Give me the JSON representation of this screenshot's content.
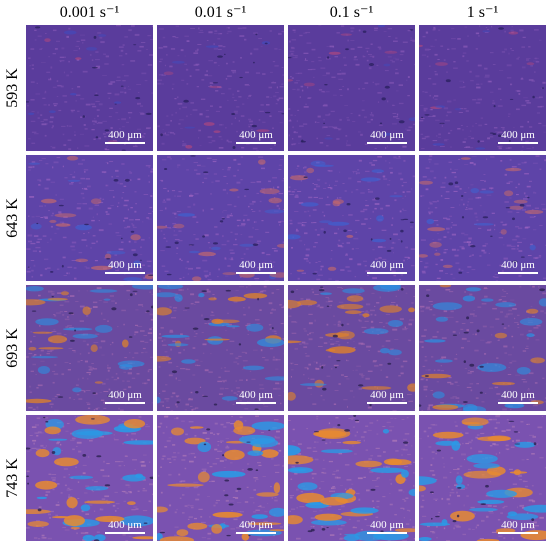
{
  "columns": [
    {
      "label": "0.001 s⁻¹"
    },
    {
      "label": "0.01 s⁻¹"
    },
    {
      "label": "0.1 s⁻¹"
    },
    {
      "label": "1 s⁻¹"
    }
  ],
  "rows": [
    {
      "label": "593 K",
      "base_color": "#5a3c9c",
      "accent_color": "#8a5ab8",
      "spot_colors": [
        "#c44a78",
        "#3a50c8",
        "#2a2060"
      ]
    },
    {
      "label": "643 K",
      "base_color": "#5e44a8",
      "accent_color": "#9a62c0",
      "spot_colors": [
        "#c86a6a",
        "#3c64d4",
        "#2a2260"
      ]
    },
    {
      "label": "693 K",
      "base_color": "#6a4aa0",
      "accent_color": "#a66ab0",
      "spot_colors": [
        "#e0822a",
        "#2e8ee0",
        "#2a2050"
      ]
    },
    {
      "label": "743 K",
      "base_color": "#7a52b0",
      "accent_color": "#b07ab8",
      "spot_colors": [
        "#e88a30",
        "#2a9ae6",
        "#2a2050"
      ]
    }
  ],
  "scale_bar": {
    "label": "400 μm"
  }
}
